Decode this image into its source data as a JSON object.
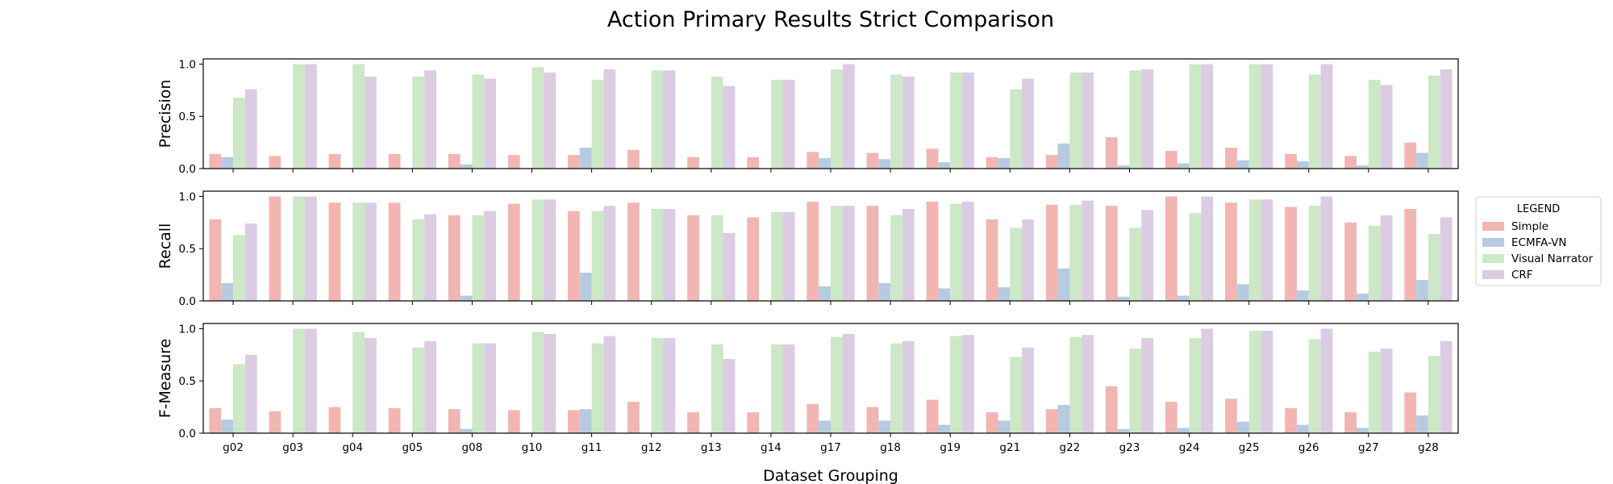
{
  "chart_data": {
    "type": "bar",
    "title": "Action Primary Results Strict Comparison",
    "xlabel": "Dataset Grouping",
    "categories": [
      "g02",
      "g03",
      "g04",
      "g05",
      "g08",
      "g10",
      "g11",
      "g12",
      "g13",
      "g14",
      "g17",
      "g18",
      "g19",
      "g21",
      "g22",
      "g23",
      "g24",
      "g25",
      "g26",
      "g27",
      "g28"
    ],
    "ylim": [
      0,
      1.05
    ],
    "yticks": [
      "0.0",
      "0.5",
      "1.0"
    ],
    "grid": false,
    "legend": {
      "title": "LEGEND",
      "placement": "right",
      "entries": [
        "Simple",
        "ECMFA-VN",
        "Visual Narrator",
        "CRF"
      ]
    },
    "colors": {
      "Simple": "#f2b6b2",
      "ECMFA-VN": "#b6cbe0",
      "Visual Narrator": "#cce8c6",
      "CRF": "#dccce3"
    },
    "panels": [
      {
        "ylabel": "Precision",
        "series": [
          {
            "name": "Simple",
            "values": [
              0.14,
              0.12,
              0.14,
              0.14,
              0.14,
              0.13,
              0.13,
              0.18,
              0.11,
              0.11,
              0.16,
              0.15,
              0.19,
              0.11,
              0.13,
              0.3,
              0.17,
              0.2,
              0.14,
              0.12,
              0.25
            ]
          },
          {
            "name": "ECMFA-VN",
            "values": [
              0.11,
              0,
              0,
              0,
              0.04,
              0,
              0.2,
              0,
              0,
              0,
              0.1,
              0.09,
              0.06,
              0.1,
              0.24,
              0.03,
              0.05,
              0.08,
              0.07,
              0.03,
              0.15
            ]
          },
          {
            "name": "Visual Narrator",
            "values": [
              0.68,
              1.0,
              1.0,
              0.88,
              0.9,
              0.97,
              0.85,
              0.94,
              0.88,
              0.85,
              0.95,
              0.9,
              0.92,
              0.76,
              0.92,
              0.94,
              1.0,
              1.0,
              0.9,
              0.85,
              0.89
            ]
          },
          {
            "name": "CRF",
            "values": [
              0.76,
              1.0,
              0.88,
              0.94,
              0.86,
              0.92,
              0.95,
              0.94,
              0.79,
              0.85,
              1.0,
              0.88,
              0.92,
              0.86,
              0.92,
              0.95,
              1.0,
              1.0,
              1.0,
              0.8,
              0.95
            ]
          }
        ]
      },
      {
        "ylabel": "Recall",
        "series": [
          {
            "name": "Simple",
            "values": [
              0.78,
              1.0,
              0.94,
              0.94,
              0.82,
              0.93,
              0.86,
              0.94,
              0.82,
              0.8,
              0.95,
              0.91,
              0.95,
              0.78,
              0.92,
              0.91,
              1.0,
              0.94,
              0.9,
              0.75,
              0.88
            ]
          },
          {
            "name": "ECMFA-VN",
            "values": [
              0.17,
              0,
              0,
              0,
              0.05,
              0,
              0.27,
              0,
              0,
              0,
              0.14,
              0.17,
              0.12,
              0.13,
              0.31,
              0.04,
              0.05,
              0.16,
              0.1,
              0.07,
              0.2
            ]
          },
          {
            "name": "Visual Narrator",
            "values": [
              0.63,
              1.0,
              0.94,
              0.78,
              0.82,
              0.97,
              0.86,
              0.88,
              0.82,
              0.85,
              0.91,
              0.82,
              0.93,
              0.7,
              0.92,
              0.7,
              0.84,
              0.97,
              0.91,
              0.72,
              0.64
            ]
          },
          {
            "name": "CRF",
            "values": [
              0.74,
              1.0,
              0.94,
              0.83,
              0.86,
              0.97,
              0.91,
              0.88,
              0.65,
              0.85,
              0.91,
              0.88,
              0.95,
              0.78,
              0.96,
              0.87,
              1.0,
              0.97,
              1.0,
              0.82,
              0.8
            ]
          }
        ]
      },
      {
        "ylabel": "F-Measure",
        "series": [
          {
            "name": "Simple",
            "values": [
              0.24,
              0.21,
              0.25,
              0.24,
              0.23,
              0.22,
              0.22,
              0.3,
              0.2,
              0.2,
              0.28,
              0.25,
              0.32,
              0.2,
              0.23,
              0.45,
              0.3,
              0.33,
              0.24,
              0.2,
              0.39
            ]
          },
          {
            "name": "ECMFA-VN",
            "values": [
              0.13,
              0,
              0,
              0,
              0.04,
              0,
              0.23,
              0,
              0,
              0,
              0.12,
              0.12,
              0.08,
              0.12,
              0.27,
              0.04,
              0.05,
              0.11,
              0.08,
              0.05,
              0.17
            ]
          },
          {
            "name": "Visual Narrator",
            "values": [
              0.66,
              1.0,
              0.97,
              0.82,
              0.86,
              0.97,
              0.86,
              0.91,
              0.85,
              0.85,
              0.92,
              0.86,
              0.93,
              0.73,
              0.92,
              0.81,
              0.91,
              0.98,
              0.9,
              0.78,
              0.74
            ]
          },
          {
            "name": "CRF",
            "values": [
              0.75,
              1.0,
              0.91,
              0.88,
              0.86,
              0.95,
              0.93,
              0.91,
              0.71,
              0.85,
              0.95,
              0.88,
              0.94,
              0.82,
              0.94,
              0.91,
              1.0,
              0.98,
              1.0,
              0.81,
              0.88
            ]
          }
        ]
      }
    ]
  }
}
